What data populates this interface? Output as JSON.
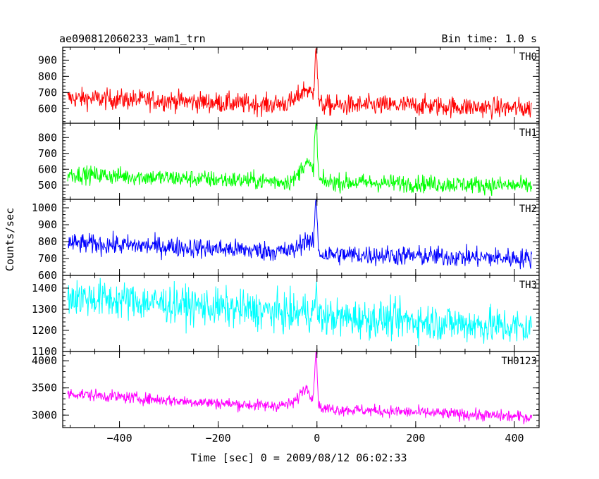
{
  "chart_data": {
    "type": "line",
    "title": "ae090812060233_wam1_trn",
    "subtitle": "Bin time: 1.0 s",
    "xlabel": "Time [sec] 0 = 2009/08/12 06:02:33",
    "ylabel": "Counts/sec",
    "xlim": [
      -515,
      450
    ],
    "x_ticks": [
      -400,
      -200,
      0,
      200,
      400
    ],
    "grid": false,
    "panels": [
      {
        "name": "TH0",
        "color": "#ff0000",
        "ylim": [
          510,
          980
        ],
        "y_ticks": [
          600,
          700,
          800,
          900
        ],
        "trend": [
          [
            -505,
            665
          ],
          [
            -300,
            650
          ],
          [
            -100,
            625
          ],
          [
            -40,
            640
          ],
          [
            0,
            620
          ],
          [
            200,
            620
          ],
          [
            435,
            600
          ]
        ],
        "noise": 32,
        "bump": {
          "center": -22,
          "width": 12,
          "height": 90
        },
        "spike": {
          "x": -2,
          "peak": 975,
          "width": 2.5
        }
      },
      {
        "name": "TH1",
        "color": "#00ff00",
        "ylim": [
          410,
          890
        ],
        "y_ticks": [
          500,
          600,
          700,
          800
        ],
        "trend": [
          [
            -505,
            570
          ],
          [
            -300,
            545
          ],
          [
            -100,
            525
          ],
          [
            -40,
            520
          ],
          [
            0,
            520
          ],
          [
            200,
            510
          ],
          [
            435,
            495
          ]
        ],
        "noise": 28,
        "bump": {
          "center": -22,
          "width": 12,
          "height": 120
        },
        "spike": {
          "x": -2,
          "peak": 885,
          "width": 2.5
        }
      },
      {
        "name": "TH2",
        "color": "#0000ff",
        "ylim": [
          600,
          1050
        ],
        "y_ticks": [
          600,
          700,
          800,
          900,
          1000
        ],
        "trend": [
          [
            -505,
            790
          ],
          [
            -300,
            770
          ],
          [
            -100,
            745
          ],
          [
            -40,
            740
          ],
          [
            0,
            725
          ],
          [
            200,
            715
          ],
          [
            435,
            700
          ]
        ],
        "noise": 30,
        "bump": {
          "center": -22,
          "width": 12,
          "height": 75
        },
        "spike": {
          "x": -2,
          "peak": 1045,
          "width": 2.5
        }
      },
      {
        "name": "TH3",
        "color": "#00ffff",
        "ylim": [
          1100,
          1460
        ],
        "y_ticks": [
          1100,
          1200,
          1300,
          1400
        ],
        "trend": [
          [
            -505,
            1360
          ],
          [
            -300,
            1325
          ],
          [
            -100,
            1290
          ],
          [
            0,
            1265
          ],
          [
            200,
            1245
          ],
          [
            435,
            1210
          ]
        ],
        "noise": 45,
        "bump": {
          "center": -22,
          "width": 12,
          "height": 20
        },
        "spike": {
          "x": -2,
          "peak": 1375,
          "width": 2
        }
      },
      {
        "name": "TH0123",
        "color": "#ff00ff",
        "ylim": [
          2770,
          4170
        ],
        "y_ticks": [
          3000,
          3500,
          4000
        ],
        "trend": [
          [
            -505,
            3400
          ],
          [
            -300,
            3270
          ],
          [
            -100,
            3170
          ],
          [
            -40,
            3200
          ],
          [
            0,
            3120
          ],
          [
            200,
            3050
          ],
          [
            435,
            2960
          ]
        ],
        "noise": 55,
        "bump": {
          "center": -22,
          "width": 12,
          "height": 330
        },
        "spike": {
          "x": -2,
          "peak": 4120,
          "width": 2.5
        }
      }
    ]
  }
}
